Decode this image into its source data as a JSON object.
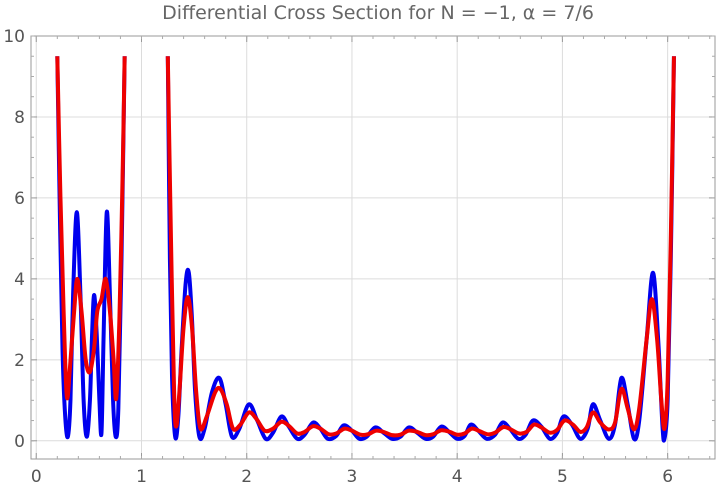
{
  "chart_data": {
    "type": "line",
    "title": "Differential Cross Section for  N = −1, α = 7/6",
    "xlabel": "",
    "ylabel": "",
    "xlim": [
      -0.05,
      6.45
    ],
    "ylim": [
      -0.45,
      10.0
    ],
    "xticks": [
      0,
      1,
      2,
      3,
      4,
      5,
      6
    ],
    "yticks": [
      0,
      2,
      4,
      6,
      8,
      10
    ],
    "grid": true,
    "legend": "none",
    "series": [
      {
        "color": "#0000ee",
        "segments": [
          [
            [
              0.2,
              9.5
            ],
            [
              0.225,
              5.5
            ],
            [
              0.25,
              2.2
            ],
            [
              0.275,
              0.6
            ],
            [
              0.3,
              0.1
            ],
            [
              0.325,
              1.0
            ],
            [
              0.35,
              3.6
            ],
            [
              0.385,
              5.65
            ],
            [
              0.42,
              3.6
            ],
            [
              0.45,
              1.0
            ],
            [
              0.48,
              0.1
            ],
            [
              0.51,
              1.0
            ],
            [
              0.53,
              2.6
            ],
            [
              0.55,
              3.6
            ],
            [
              0.575,
              2.6
            ],
            [
              0.6,
              1.0
            ],
            [
              0.62,
              0.2
            ],
            [
              0.64,
              2.6
            ],
            [
              0.67,
              5.65
            ],
            [
              0.7,
              3.6
            ],
            [
              0.73,
              1.0
            ],
            [
              0.755,
              0.1
            ],
            [
              0.78,
              0.8
            ],
            [
              0.81,
              4.5
            ],
            [
              0.84,
              9.5
            ]
          ],
          [
            [
              1.25,
              9.5
            ],
            [
              1.27,
              4.5
            ],
            [
              1.29,
              1.6
            ],
            [
              1.32,
              0.1
            ],
            [
              1.35,
              0.6
            ],
            [
              1.38,
              2.2
            ],
            [
              1.42,
              3.9
            ],
            [
              1.45,
              4.15
            ],
            [
              1.48,
              3.0
            ],
            [
              1.51,
              1.2
            ],
            [
              1.55,
              0.1
            ],
            [
              1.6,
              0.3
            ],
            [
              1.67,
              1.2
            ],
            [
              1.74,
              1.55
            ],
            [
              1.8,
              0.9
            ],
            [
              1.86,
              0.1
            ],
            [
              1.93,
              0.3
            ],
            [
              2.02,
              0.9
            ],
            [
              2.1,
              0.5
            ],
            [
              2.18,
              0.05
            ],
            [
              2.25,
              0.2
            ],
            [
              2.33,
              0.6
            ],
            [
              2.4,
              0.35
            ],
            [
              2.48,
              0.05
            ],
            [
              2.55,
              0.15
            ],
            [
              2.63,
              0.45
            ],
            [
              2.7,
              0.3
            ],
            [
              2.77,
              0.05
            ],
            [
              2.85,
              0.12
            ],
            [
              2.92,
              0.38
            ],
            [
              3.0,
              0.25
            ],
            [
              3.07,
              0.05
            ],
            [
              3.14,
              0.1
            ],
            [
              3.22,
              0.33
            ],
            [
              3.3,
              0.2
            ],
            [
              3.38,
              0.05
            ],
            [
              3.46,
              0.1
            ],
            [
              3.54,
              0.33
            ],
            [
              3.62,
              0.2
            ],
            [
              3.7,
              0.05
            ],
            [
              3.77,
              0.1
            ],
            [
              3.85,
              0.35
            ],
            [
              3.93,
              0.2
            ],
            [
              4.0,
              0.05
            ],
            [
              4.07,
              0.12
            ],
            [
              4.13,
              0.4
            ],
            [
              4.2,
              0.25
            ],
            [
              4.28,
              0.05
            ],
            [
              4.36,
              0.15
            ],
            [
              4.43,
              0.45
            ],
            [
              4.5,
              0.3
            ],
            [
              4.58,
              0.05
            ],
            [
              4.65,
              0.15
            ],
            [
              4.72,
              0.5
            ],
            [
              4.8,
              0.35
            ],
            [
              4.88,
              0.05
            ],
            [
              4.95,
              0.2
            ],
            [
              5.01,
              0.6
            ],
            [
              5.09,
              0.4
            ],
            [
              5.17,
              0.05
            ],
            [
              5.24,
              0.3
            ],
            [
              5.29,
              0.9
            ],
            [
              5.36,
              0.5
            ],
            [
              5.44,
              0.05
            ],
            [
              5.5,
              0.4
            ],
            [
              5.56,
              1.55
            ],
            [
              5.62,
              0.9
            ],
            [
              5.68,
              0.05
            ],
            [
              5.73,
              0.5
            ],
            [
              5.8,
              2.5
            ],
            [
              5.86,
              4.15
            ],
            [
              5.91,
              2.5
            ],
            [
              5.95,
              0.4
            ],
            [
              5.97,
              0.05
            ],
            [
              6.0,
              1.0
            ],
            [
              6.03,
              4.5
            ],
            [
              6.06,
              9.5
            ]
          ]
        ]
      },
      {
        "color": "#ee0000",
        "segments": [
          [
            [
              0.2,
              9.5
            ],
            [
              0.23,
              6.0
            ],
            [
              0.26,
              3.2
            ],
            [
              0.29,
              1.1
            ],
            [
              0.32,
              1.8
            ],
            [
              0.36,
              3.2
            ],
            [
              0.39,
              4.0
            ],
            [
              0.43,
              3.2
            ],
            [
              0.47,
              2.0
            ],
            [
              0.51,
              1.7
            ],
            [
              0.55,
              2.3
            ],
            [
              0.58,
              3.2
            ],
            [
              0.62,
              3.5
            ],
            [
              0.66,
              4.0
            ],
            [
              0.7,
              3.2
            ],
            [
              0.735,
              2.0
            ],
            [
              0.76,
              1.05
            ],
            [
              0.79,
              3.0
            ],
            [
              0.82,
              6.5
            ],
            [
              0.84,
              9.5
            ]
          ],
          [
            [
              1.25,
              9.5
            ],
            [
              1.28,
              5.0
            ],
            [
              1.31,
              1.2
            ],
            [
              1.33,
              0.35
            ],
            [
              1.36,
              1.2
            ],
            [
              1.4,
              2.8
            ],
            [
              1.44,
              3.55
            ],
            [
              1.48,
              2.8
            ],
            [
              1.52,
              1.2
            ],
            [
              1.56,
              0.3
            ],
            [
              1.62,
              0.6
            ],
            [
              1.7,
              1.2
            ],
            [
              1.75,
              1.28
            ],
            [
              1.81,
              0.9
            ],
            [
              1.87,
              0.3
            ],
            [
              1.94,
              0.4
            ],
            [
              2.02,
              0.7
            ],
            [
              2.09,
              0.55
            ],
            [
              2.17,
              0.25
            ],
            [
              2.25,
              0.3
            ],
            [
              2.33,
              0.47
            ],
            [
              2.4,
              0.37
            ],
            [
              2.48,
              0.18
            ],
            [
              2.55,
              0.22
            ],
            [
              2.63,
              0.36
            ],
            [
              2.7,
              0.3
            ],
            [
              2.78,
              0.16
            ],
            [
              2.85,
              0.18
            ],
            [
              2.93,
              0.3
            ],
            [
              3.0,
              0.25
            ],
            [
              3.08,
              0.15
            ],
            [
              3.15,
              0.16
            ],
            [
              3.23,
              0.25
            ],
            [
              3.3,
              0.22
            ],
            [
              3.38,
              0.14
            ],
            [
              3.46,
              0.15
            ],
            [
              3.54,
              0.25
            ],
            [
              3.62,
              0.22
            ],
            [
              3.7,
              0.14
            ],
            [
              3.77,
              0.16
            ],
            [
              3.85,
              0.26
            ],
            [
              3.93,
              0.22
            ],
            [
              4.0,
              0.15
            ],
            [
              4.07,
              0.18
            ],
            [
              4.14,
              0.3
            ],
            [
              4.21,
              0.24
            ],
            [
              4.29,
              0.16
            ],
            [
              4.36,
              0.2
            ],
            [
              4.44,
              0.34
            ],
            [
              4.51,
              0.28
            ],
            [
              4.59,
              0.18
            ],
            [
              4.66,
              0.22
            ],
            [
              4.73,
              0.4
            ],
            [
              4.8,
              0.33
            ],
            [
              4.88,
              0.2
            ],
            [
              4.95,
              0.27
            ],
            [
              5.02,
              0.5
            ],
            [
              5.1,
              0.4
            ],
            [
              5.17,
              0.22
            ],
            [
              5.23,
              0.33
            ],
            [
              5.29,
              0.7
            ],
            [
              5.36,
              0.45
            ],
            [
              5.44,
              0.28
            ],
            [
              5.5,
              0.45
            ],
            [
              5.56,
              1.28
            ],
            [
              5.62,
              0.8
            ],
            [
              5.68,
              0.28
            ],
            [
              5.73,
              0.8
            ],
            [
              5.8,
              2.5
            ],
            [
              5.85,
              3.5
            ],
            [
              5.9,
              2.5
            ],
            [
              5.94,
              1.0
            ],
            [
              5.97,
              0.3
            ],
            [
              6.0,
              1.5
            ],
            [
              6.03,
              5.0
            ],
            [
              6.06,
              9.5
            ]
          ]
        ]
      }
    ]
  }
}
